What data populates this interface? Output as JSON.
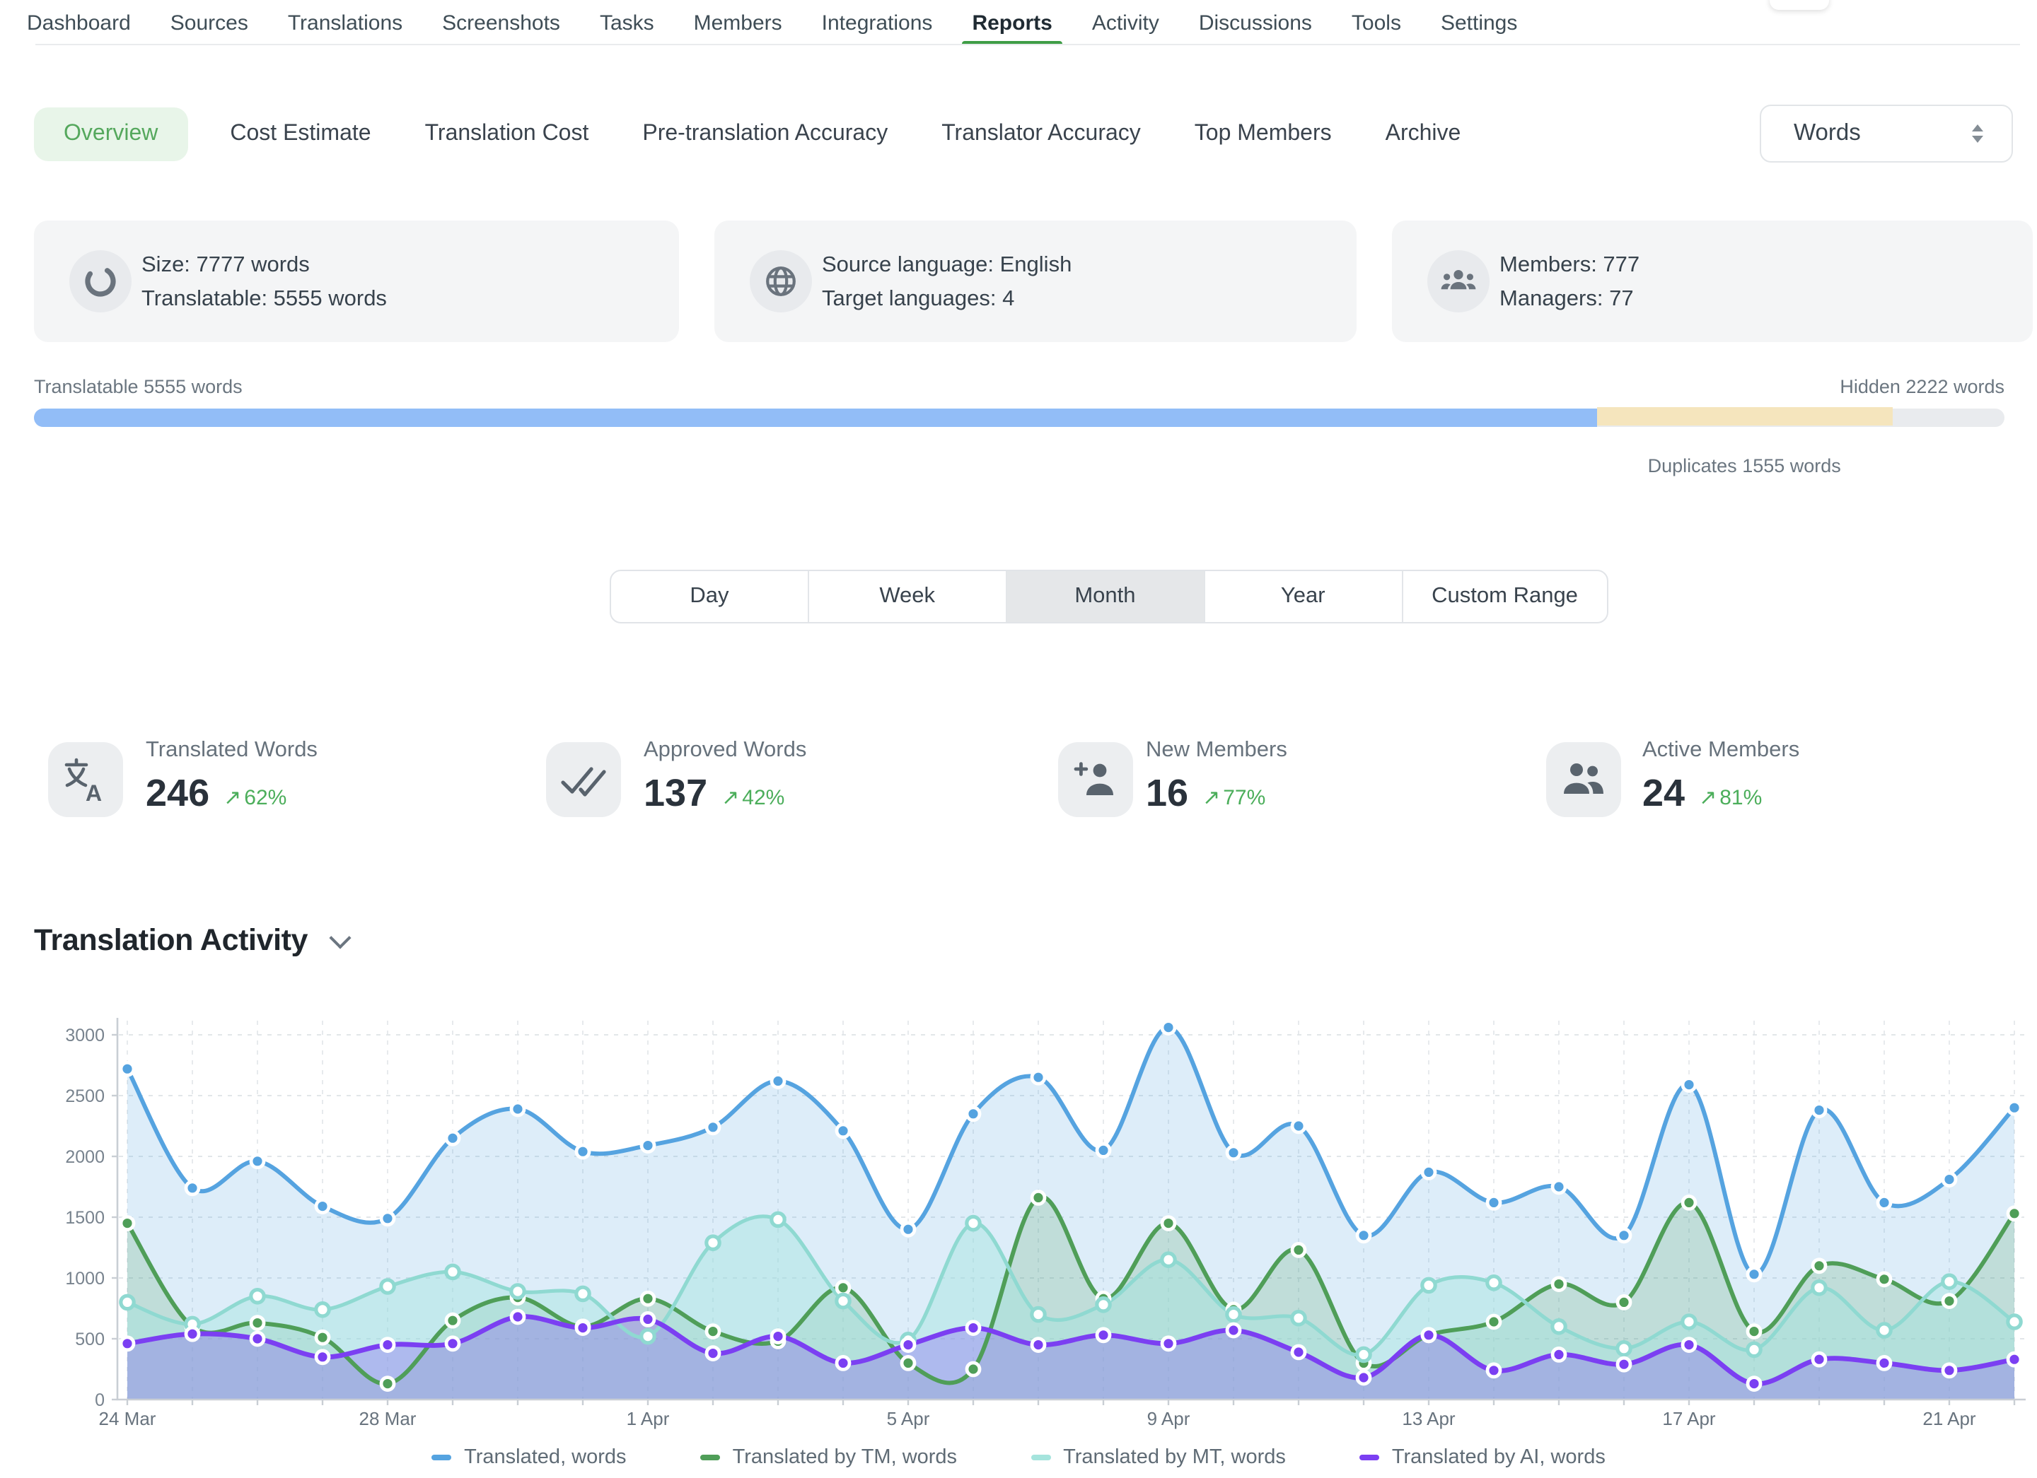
{
  "topnav": {
    "items": [
      "Dashboard",
      "Sources",
      "Translations",
      "Screenshots",
      "Tasks",
      "Members",
      "Integrations",
      "Reports",
      "Activity",
      "Discussions",
      "Tools",
      "Settings"
    ],
    "active": "Reports",
    "accent_green": "#3f9d46"
  },
  "subnav": {
    "tabs": [
      "Overview",
      "Cost Estimate",
      "Translation Cost",
      "Pre-translation Accuracy",
      "Translator Accuracy",
      "Top Members",
      "Archive"
    ],
    "active": "Overview",
    "unit_select": {
      "value": "Words"
    }
  },
  "summary_cards": [
    {
      "icon": "donut-icon",
      "lines": [
        "Size: 7777 words",
        "Translatable: 5555 words"
      ]
    },
    {
      "icon": "globe-icon",
      "lines": [
        "Source language: English",
        "Target languages: 4"
      ]
    },
    {
      "icon": "members-icon",
      "lines": [
        "Members: 777",
        "Managers: 77"
      ]
    }
  ],
  "words_breakdown": {
    "translatable_label": "Translatable 5555 words",
    "hidden_label": "Hidden 2222 words",
    "duplicates_label": "Duplicates 1555 words",
    "translatable_pct": 79.3,
    "duplicates_start_pct": 79.3,
    "duplicates_width_pct": 15.0,
    "colors": {
      "translatable": "#92bdf7",
      "hidden_track": "#e9ebee",
      "duplicates": "#f5e5bd"
    }
  },
  "range_tabs": {
    "options": [
      "Day",
      "Week",
      "Month",
      "Year",
      "Custom Range"
    ],
    "active": "Month"
  },
  "metrics": [
    {
      "icon": "translate-icon",
      "label": "Translated Words",
      "value": "246",
      "delta": "62%"
    },
    {
      "icon": "double-check-icon",
      "label": "Approved Words",
      "value": "137",
      "delta": "42%"
    },
    {
      "icon": "person-plus-icon",
      "label": "New Members",
      "value": "16",
      "delta": "77%"
    },
    {
      "icon": "people-icon",
      "label": "Active Members",
      "value": "24",
      "delta": "81%"
    }
  ],
  "section": {
    "title": "Translation Activity"
  },
  "chart_data": {
    "type": "area",
    "title": "Translation Activity",
    "x": [
      "24 Mar",
      "25 Mar",
      "26 Mar",
      "27 Mar",
      "28 Mar",
      "29 Mar",
      "30 Mar",
      "31 Mar",
      "1 Apr",
      "2 Apr",
      "3 Apr",
      "4 Apr",
      "5 Apr",
      "6 Apr",
      "7 Apr",
      "8 Apr",
      "9 Apr",
      "10 Apr",
      "11 Apr",
      "12 Apr",
      "13 Apr",
      "14 Apr",
      "15 Apr",
      "16 Apr",
      "17 Apr",
      "18 Apr",
      "19 Apr",
      "20 Apr",
      "21 Apr",
      "22 Apr"
    ],
    "xtick_labels": [
      "24 Mar",
      "28 Mar",
      "1 Apr",
      "5 Apr",
      "9 Apr",
      "13 Apr",
      "17 Apr",
      "21 Apr"
    ],
    "xtick_every": 4,
    "ylim": [
      0,
      3200
    ],
    "yticks": [
      0,
      500,
      1000,
      1500,
      2000,
      2500,
      3000
    ],
    "grid": true,
    "legend_position": "bottom",
    "series": [
      {
        "name": "Translated, words",
        "color": "#55a3e0",
        "swatch": "#55a3e0",
        "fill": "rgba(85,163,224,0.20)",
        "values": [
          2720,
          1740,
          1960,
          1590,
          1490,
          2150,
          2390,
          2040,
          2090,
          2240,
          2620,
          2210,
          1400,
          2350,
          2650,
          2050,
          3060,
          2030,
          2250,
          1350,
          1870,
          1620,
          1750,
          1350,
          2590,
          1030,
          2380,
          1620,
          1810,
          2400
        ]
      },
      {
        "name": "Translated by TM, words",
        "color": "#4f9e58",
        "swatch": "#4f9e58",
        "fill": "rgba(79,158,88,0.20)",
        "values": [
          1450,
          600,
          630,
          510,
          130,
          650,
          840,
          600,
          830,
          560,
          480,
          920,
          300,
          250,
          1660,
          830,
          1450,
          740,
          1230,
          300,
          530,
          640,
          950,
          800,
          1620,
          560,
          1100,
          990,
          810,
          1530
        ]
      },
      {
        "name": "Translated by MT, words",
        "color": "#8fd9d1",
        "swatch": "#a5e4dd",
        "fill": "rgba(165,228,221,0.45)",
        "values": [
          800,
          620,
          850,
          740,
          930,
          1050,
          890,
          870,
          520,
          1290,
          1480,
          810,
          490,
          1450,
          700,
          780,
          1150,
          700,
          670,
          370,
          940,
          960,
          600,
          420,
          640,
          410,
          920,
          570,
          970,
          640
        ]
      },
      {
        "name": "Translated by AI, words",
        "color": "#7b3ff2",
        "swatch": "#7b3ff2",
        "fill": "rgba(123,63,242,0.28)",
        "values": [
          460,
          540,
          500,
          350,
          450,
          460,
          680,
          590,
          660,
          380,
          520,
          300,
          450,
          590,
          450,
          530,
          460,
          570,
          390,
          180,
          530,
          240,
          370,
          290,
          450,
          130,
          330,
          300,
          240,
          330
        ]
      }
    ]
  }
}
